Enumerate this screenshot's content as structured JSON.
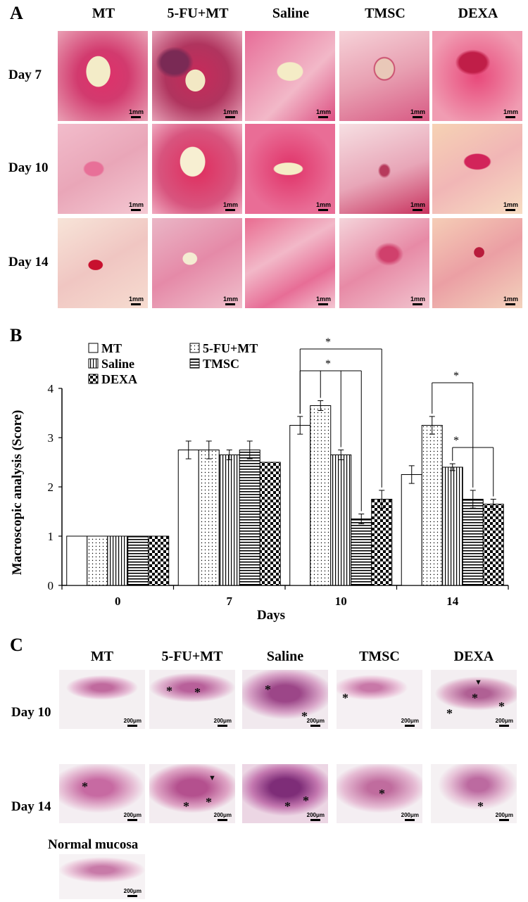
{
  "panel_a": {
    "letter": "A",
    "columns": [
      "MT",
      "5-FU+MT",
      "Saline",
      "TMSC",
      "DEXA"
    ],
    "rows": [
      "Day 7",
      "Day 10",
      "Day 14"
    ],
    "scale_label": "1mm"
  },
  "panel_b": {
    "letter": "B"
  },
  "chart_data": {
    "type": "bar",
    "categories": [
      "0",
      "7",
      "10",
      "14"
    ],
    "series": [
      {
        "name": "MT",
        "values": [
          1,
          2.75,
          3.25,
          2.25
        ],
        "errors": [
          0,
          0.18,
          0.18,
          0.18
        ]
      },
      {
        "name": "5-FU+MT",
        "values": [
          1,
          2.75,
          3.65,
          3.25
        ],
        "errors": [
          0,
          0.18,
          0.1,
          0.18
        ]
      },
      {
        "name": "Saline",
        "values": [
          1,
          2.65,
          2.65,
          2.4
        ],
        "errors": [
          0,
          0.1,
          0.1,
          0.07
        ]
      },
      {
        "name": "TMSC",
        "values": [
          1,
          2.75,
          1.35,
          1.75
        ],
        "errors": [
          0,
          0.18,
          0.1,
          0.18
        ]
      },
      {
        "name": "DEXA",
        "values": [
          1,
          2.5,
          1.75,
          1.65
        ],
        "errors": [
          0,
          0,
          0.18,
          0.1
        ]
      }
    ],
    "xlabel": "Days",
    "ylabel": "Macroscopic analysis (Score)",
    "ylim": [
      0,
      4
    ],
    "yticks": [
      "0",
      "1",
      "2",
      "3",
      "4"
    ],
    "significance_marker": "*",
    "legend_position": "top-left"
  },
  "panel_c": {
    "letter": "C",
    "columns": [
      "MT",
      "5-FU+MT",
      "Saline",
      "TMSC",
      "DEXA"
    ],
    "rows": [
      "Day 10",
      "Day 14"
    ],
    "normal_label": "Normal mucosa",
    "scale_label": "200μm",
    "lesion_marker": "*",
    "arrowhead": "▼"
  }
}
